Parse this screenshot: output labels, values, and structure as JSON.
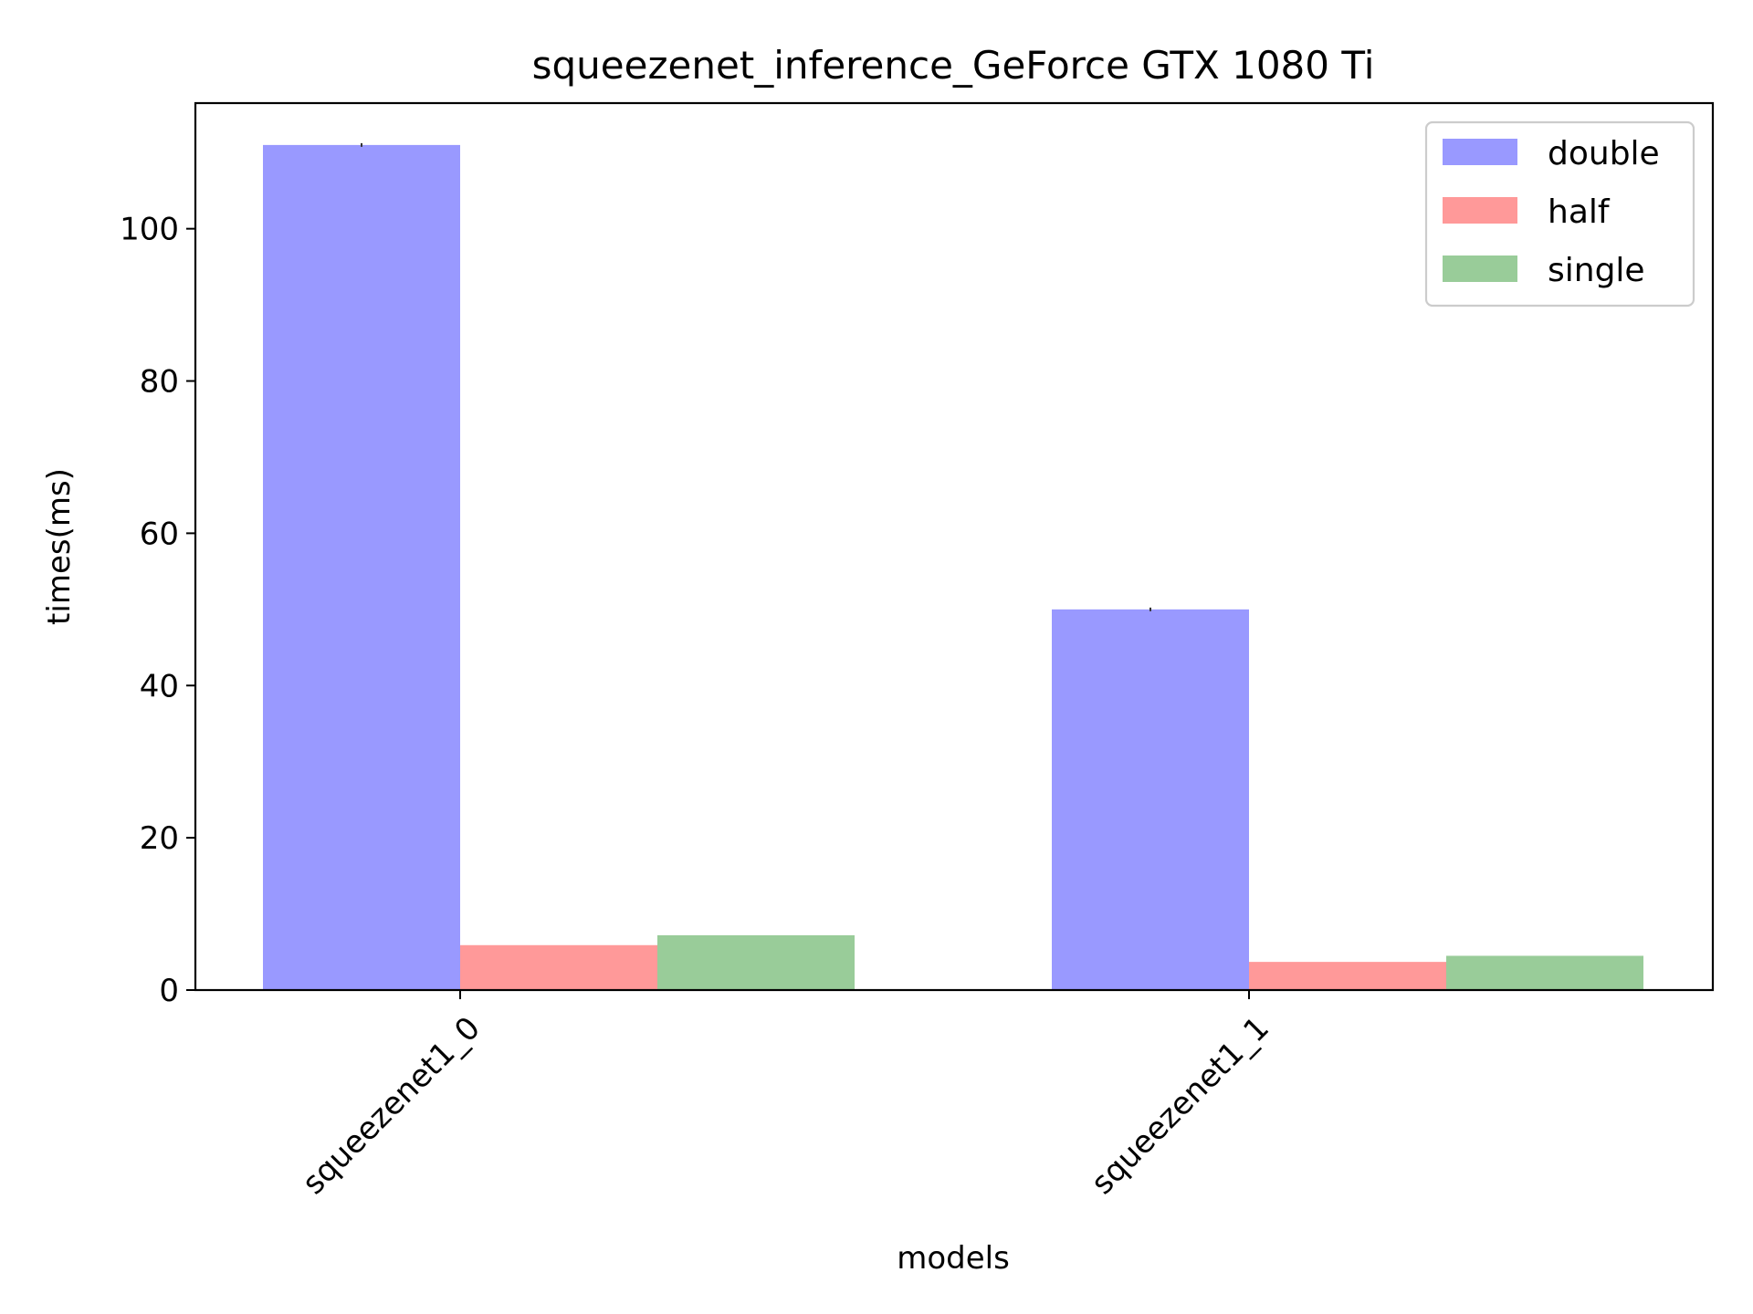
{
  "chart_data": {
    "type": "bar",
    "title": "squeezenet_inference_GeForce GTX 1080 Ti",
    "xlabel": "models",
    "ylabel": "times(ms)",
    "categories": [
      "squeezenet1_0",
      "squeezenet1_1"
    ],
    "series": [
      {
        "name": "double",
        "values": [
          111.0,
          50.0
        ],
        "color": "#9999ff"
      },
      {
        "name": "half",
        "values": [
          5.9,
          3.7
        ],
        "color": "#ff9999"
      },
      {
        "name": "single",
        "values": [
          7.2,
          4.5
        ],
        "color": "#99cc99"
      }
    ],
    "ylim": [
      0,
      116.5
    ],
    "yticks": [
      0,
      20,
      40,
      60,
      80,
      100
    ],
    "grid": false,
    "legend": "top-right"
  }
}
